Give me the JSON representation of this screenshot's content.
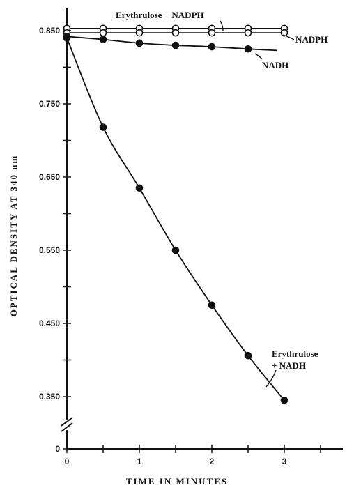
{
  "chart_data": {
    "type": "line",
    "xlabel": "TIME IN MINUTES",
    "ylabel": "OPTICAL DENSITY AT 340 nm",
    "xlim": [
      0,
      3.5
    ],
    "ylim": [
      0.3,
      0.9
    ],
    "axis_break": true,
    "x_tick_labels": [
      "0",
      "1",
      "2",
      "3"
    ],
    "y_tick_labels": [
      "0.850",
      "0.750",
      "0.650",
      "0.550",
      "0.450",
      "0.350",
      "0"
    ],
    "y_tick_values": [
      0.85,
      0.75,
      0.65,
      0.55,
      0.45,
      0.35
    ],
    "zero_label": "0",
    "grid": false,
    "series": [
      {
        "name": "Erythrulose + NADPH",
        "marker": "open-circle",
        "x": [
          0,
          0.5,
          1.0,
          1.5,
          2.0,
          2.5,
          3.0
        ],
        "y": [
          0.853,
          0.853,
          0.853,
          0.853,
          0.853,
          0.853,
          0.853
        ],
        "label_lines": [
          "Erythrulose + NADPH"
        ]
      },
      {
        "name": "NADPH",
        "marker": "open-circle",
        "x": [
          0,
          0.5,
          1.0,
          1.5,
          2.0,
          2.5,
          3.0
        ],
        "y": [
          0.847,
          0.847,
          0.847,
          0.847,
          0.847,
          0.847,
          0.847
        ],
        "label_lines": [
          "NADPH"
        ]
      },
      {
        "name": "NADH",
        "marker": "filled-circle",
        "x": [
          0,
          0.5,
          1.0,
          1.5,
          2.0,
          2.5
        ],
        "y": [
          0.842,
          0.838,
          0.833,
          0.83,
          0.828,
          0.825
        ],
        "curve_end": [
          2.9,
          0.823
        ],
        "label_lines": [
          "NADH"
        ]
      },
      {
        "name": "Erythrulose + NADH",
        "marker": "filled-circle",
        "x": [
          0,
          0.5,
          1.0,
          1.5,
          2.0,
          2.5,
          3.0
        ],
        "y": [
          0.84,
          0.718,
          0.635,
          0.55,
          0.475,
          0.406,
          0.345
        ],
        "label_lines": [
          "Erythrulose",
          "+ NADH"
        ]
      }
    ]
  }
}
